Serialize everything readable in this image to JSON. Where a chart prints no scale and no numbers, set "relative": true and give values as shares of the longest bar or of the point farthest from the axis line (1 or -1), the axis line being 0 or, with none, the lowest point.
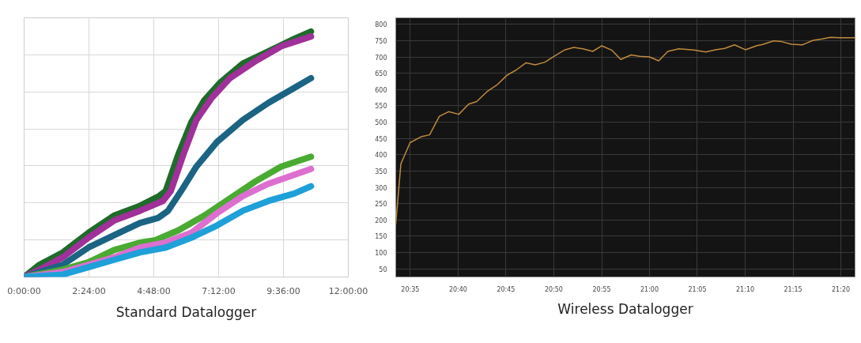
{
  "chart_data": [
    {
      "type": "line",
      "title": "Standard Datalogger",
      "relative": true,
      "grid": true,
      "tick_labels": "x",
      "xlim": [
        0,
        12
      ],
      "xticks": [
        {
          "value": 0,
          "label": "0:00:00"
        },
        {
          "value": 2.4,
          "label": "2:24:00"
        },
        {
          "value": 4.8,
          "label": "4:48:00"
        },
        {
          "value": 7.2,
          "label": "7:12:00"
        },
        {
          "value": 9.6,
          "label": "9:36:00"
        },
        {
          "value": 12,
          "label": "12:00:00"
        }
      ],
      "series": [
        {
          "color": "#1e6b2a",
          "x": [
            0,
            0.57,
            1.43,
            2.38,
            3.33,
            4.29,
            5.0,
            5.24,
            5.71,
            6.19,
            6.67,
            7.24,
            8.1,
            9.05,
            10.0,
            10.62
          ],
          "values": [
            0,
            0.05,
            0.1,
            0.18,
            0.25,
            0.29,
            0.33,
            0.35,
            0.5,
            0.63,
            0.72,
            0.79,
            0.87,
            0.92,
            0.97,
            1.0
          ]
        },
        {
          "color": "#a0309a",
          "x": [
            0,
            0.57,
            1.43,
            2.38,
            3.33,
            4.29,
            5.14,
            5.43,
            5.9,
            6.38,
            6.95,
            7.62,
            8.57,
            9.52,
            10.62
          ],
          "values": [
            0,
            0.03,
            0.08,
            0.16,
            0.23,
            0.27,
            0.31,
            0.35,
            0.5,
            0.64,
            0.73,
            0.81,
            0.88,
            0.94,
            0.98
          ]
        },
        {
          "color": "#1b6483",
          "x": [
            0,
            1.43,
            2.38,
            3.33,
            4.29,
            4.95,
            5.33,
            5.81,
            6.38,
            7.14,
            8.1,
            9.05,
            10.0,
            10.62
          ],
          "values": [
            0,
            0.05,
            0.12,
            0.17,
            0.22,
            0.24,
            0.27,
            0.35,
            0.45,
            0.55,
            0.64,
            0.71,
            0.77,
            0.81
          ]
        },
        {
          "color": "#4aaa32",
          "x": [
            0,
            1.43,
            2.38,
            3.33,
            4.29,
            4.86,
            5.71,
            6.67,
            7.62,
            8.57,
            9.52,
            10.62
          ],
          "values": [
            0,
            0.03,
            0.06,
            0.11,
            0.14,
            0.15,
            0.19,
            0.25,
            0.32,
            0.39,
            0.45,
            0.49
          ]
        },
        {
          "color": "#dc6fd0",
          "x": [
            0,
            1.43,
            2.38,
            3.33,
            4.29,
            5.24,
            6.19,
            7.14,
            8.1,
            9.05,
            10.62
          ],
          "values": [
            0,
            0.02,
            0.05,
            0.08,
            0.12,
            0.14,
            0.18,
            0.26,
            0.33,
            0.38,
            0.44
          ]
        },
        {
          "color": "#1ea0d8",
          "x": [
            0,
            1.43,
            2.38,
            3.33,
            4.29,
            5.24,
            6.19,
            7.14,
            8.1,
            9.05,
            10.0,
            10.62
          ],
          "values": [
            0,
            0.01,
            0.04,
            0.07,
            0.1,
            0.12,
            0.16,
            0.21,
            0.27,
            0.31,
            0.34,
            0.37
          ]
        }
      ]
    },
    {
      "type": "line",
      "title": "Wireless Datalogger",
      "grid": true,
      "xlim": [
        20.558,
        21.358
      ],
      "ylim": [
        25,
        820
      ],
      "yticks": [
        50,
        100,
        150,
        200,
        250,
        300,
        350,
        400,
        450,
        500,
        550,
        600,
        650,
        700,
        750,
        800
      ],
      "xticks": [
        {
          "value": 20.5833,
          "label": "20:35"
        },
        {
          "value": 20.6667,
          "label": "20:40"
        },
        {
          "value": 20.75,
          "label": "20:45"
        },
        {
          "value": 20.8333,
          "label": "20:50"
        },
        {
          "value": 20.9167,
          "label": "20:55"
        },
        {
          "value": 21.0,
          "label": "21:00"
        },
        {
          "value": 21.0833,
          "label": "21:05"
        },
        {
          "value": 21.1667,
          "label": "21:10"
        },
        {
          "value": 21.25,
          "label": "21:15"
        },
        {
          "value": 21.3333,
          "label": "21:20"
        }
      ],
      "series": [
        {
          "color": "#c08a3e",
          "x": [
            20.558,
            20.567,
            20.583,
            20.602,
            20.617,
            20.634,
            20.65,
            20.668,
            20.685,
            20.699,
            20.718,
            20.735,
            20.752,
            20.768,
            20.785,
            20.801,
            20.818,
            20.834,
            20.853,
            20.868,
            20.884,
            20.901,
            20.917,
            20.934,
            20.95,
            20.968,
            20.983,
            21.0,
            21.016,
            21.032,
            21.051,
            21.077,
            21.098,
            21.115,
            21.131,
            21.148,
            21.167,
            21.186,
            21.197,
            21.216,
            21.23,
            21.247,
            21.266,
            21.285,
            21.301,
            21.315,
            21.332,
            21.358
          ],
          "values": [
            186,
            372,
            437,
            455,
            461,
            518,
            532,
            524,
            555,
            563,
            595,
            615,
            644,
            660,
            682,
            676,
            684,
            702,
            722,
            729,
            725,
            717,
            734,
            721,
            692,
            706,
            702,
            700,
            688,
            717,
            725,
            721,
            715,
            722,
            726,
            737,
            722,
            734,
            738,
            749,
            747,
            739,
            737,
            751,
            755,
            760,
            759,
            759
          ]
        }
      ]
    }
  ]
}
